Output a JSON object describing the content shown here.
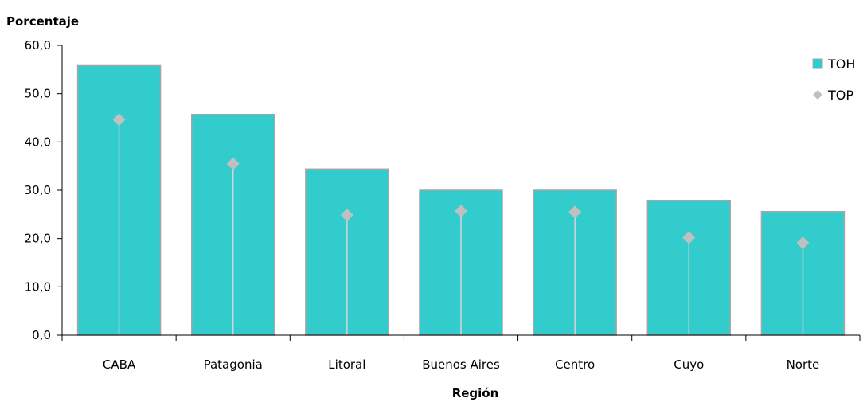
{
  "chart_data": {
    "type": "bar",
    "title": "",
    "ylabel": "Porcentaje",
    "xlabel": "Región",
    "categories": [
      "CABA",
      "Patagonia",
      "Litoral",
      "Buenos Aires",
      "Centro",
      "Cuyo",
      "Norte"
    ],
    "series": [
      {
        "name": "TOH",
        "kind": "bar",
        "color": "#33cccc",
        "values": [
          55.8,
          45.7,
          34.4,
          30.0,
          30.0,
          27.9,
          25.6
        ]
      },
      {
        "name": "TOP",
        "kind": "marker-stem",
        "color": "#c0c0c0",
        "values": [
          44.6,
          35.5,
          24.9,
          25.7,
          25.5,
          20.2,
          19.1
        ]
      }
    ],
    "ylim": [
      0,
      60
    ],
    "yticks": [
      0,
      10,
      20,
      30,
      40,
      50,
      60
    ],
    "ytick_labels": [
      "0,0",
      "10,0",
      "20,0",
      "30,0",
      "40,0",
      "50,0",
      "60,0"
    ],
    "grid": false,
    "legend": {
      "position": "top-right",
      "entries": [
        "TOH",
        "TOP"
      ]
    }
  }
}
